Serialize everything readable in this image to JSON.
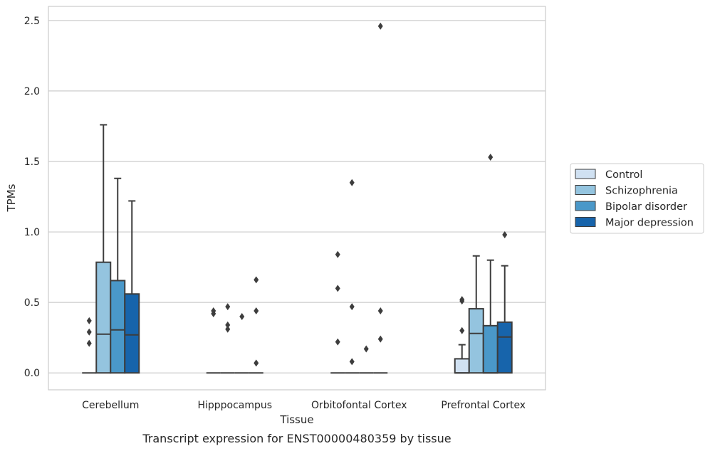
{
  "caption": "Transcript expression for ENST00000480359 by tissue",
  "chart_data": {
    "type": "box",
    "title": "",
    "xlabel": "Tissue",
    "ylabel": "TPMs",
    "ylim": [
      -0.12,
      2.6
    ],
    "yticks": [
      "0.0",
      "0.5",
      "1.0",
      "1.5",
      "2.0",
      "2.5"
    ],
    "grid": "horizontal",
    "legend_position": "right",
    "categories": [
      "Cerebellum",
      "Hipppocampus",
      "Orbitofontal Cortex",
      "Prefrontal Cortex"
    ],
    "series": [
      {
        "name": "Control",
        "color": "#d0e1f2",
        "boxes": [
          {
            "q1": 0,
            "median": 0,
            "q3": 0,
            "whisker_low": 0,
            "whisker_high": 0,
            "outliers": [
              0.21,
              0.29,
              0.37
            ]
          },
          {
            "q1": 0,
            "median": 0,
            "q3": 0,
            "whisker_low": 0,
            "whisker_high": 0,
            "outliers": [
              0.42,
              0.44
            ]
          },
          {
            "q1": 0,
            "median": 0,
            "q3": 0,
            "whisker_low": 0,
            "whisker_high": 0,
            "outliers": [
              0.22,
              0.6,
              0.84
            ]
          },
          {
            "q1": 0,
            "median": 0,
            "q3": 0.1,
            "whisker_low": 0,
            "whisker_high": 0.2,
            "outliers": [
              0.3,
              0.51,
              0.52
            ]
          }
        ]
      },
      {
        "name": "Schizophrenia",
        "color": "#94c4df",
        "boxes": [
          {
            "q1": 0,
            "median": 0.275,
            "q3": 0.785,
            "whisker_low": 0,
            "whisker_high": 1.76,
            "outliers": []
          },
          {
            "q1": 0,
            "median": 0,
            "q3": 0,
            "whisker_low": 0,
            "whisker_high": 0,
            "outliers": [
              0.31,
              0.34,
              0.47
            ]
          },
          {
            "q1": 0,
            "median": 0,
            "q3": 0,
            "whisker_low": 0,
            "whisker_high": 0,
            "outliers": [
              0.08,
              0.47,
              1.35
            ]
          },
          {
            "q1": 0,
            "median": 0.28,
            "q3": 0.455,
            "whisker_low": 0,
            "whisker_high": 0.83,
            "outliers": []
          }
        ]
      },
      {
        "name": "Bipolar disorder",
        "color": "#4a98c9",
        "boxes": [
          {
            "q1": 0,
            "median": 0.305,
            "q3": 0.655,
            "whisker_low": 0,
            "whisker_high": 1.38,
            "outliers": []
          },
          {
            "q1": 0,
            "median": 0,
            "q3": 0,
            "whisker_low": 0,
            "whisker_high": 0,
            "outliers": [
              0.4
            ]
          },
          {
            "q1": 0,
            "median": 0,
            "q3": 0,
            "whisker_low": 0,
            "whisker_high": 0,
            "outliers": [
              0.17
            ]
          },
          {
            "q1": 0,
            "median": 0,
            "q3": 0.335,
            "whisker_low": 0,
            "whisker_high": 0.8,
            "outliers": [
              1.53
            ]
          }
        ]
      },
      {
        "name": "Major depression",
        "color": "#1764ab",
        "boxes": [
          {
            "q1": 0,
            "median": 0.27,
            "q3": 0.56,
            "whisker_low": 0,
            "whisker_high": 1.22,
            "outliers": []
          },
          {
            "q1": 0,
            "median": 0,
            "q3": 0,
            "whisker_low": 0,
            "whisker_high": 0,
            "outliers": [
              0.07,
              0.44,
              0.66
            ]
          },
          {
            "q1": 0,
            "median": 0,
            "q3": 0,
            "whisker_low": 0,
            "whisker_high": 0,
            "outliers": [
              0.24,
              0.44,
              2.46
            ]
          },
          {
            "q1": 0,
            "median": 0.255,
            "q3": 0.36,
            "whisker_low": 0,
            "whisker_high": 0.76,
            "outliers": [
              0.98
            ]
          }
        ]
      }
    ]
  }
}
